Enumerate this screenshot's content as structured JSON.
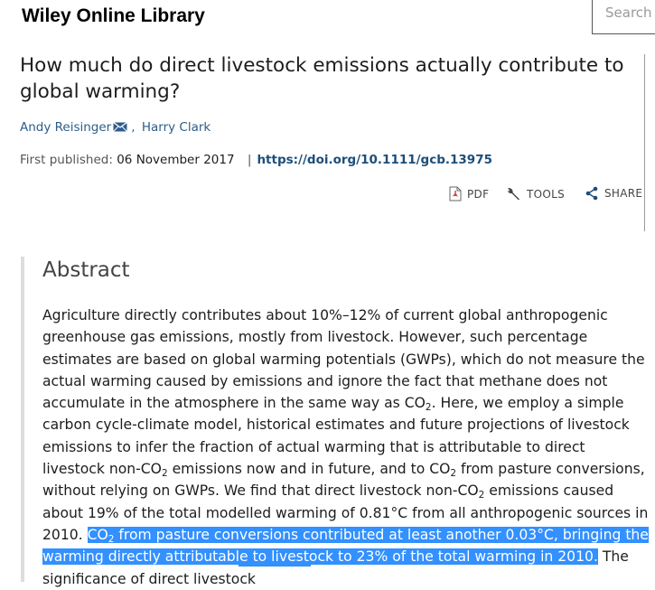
{
  "header": {
    "brand": "Wiley Online Library",
    "search_placeholder": "Search"
  },
  "article": {
    "title": "How much do direct livestock emissions actually contribute to global warming?",
    "authors": [
      "Andy Reisinger",
      "Harry Clark"
    ],
    "author_separator": ",",
    "first_published_label": "First published:",
    "first_published_date": "06 November 2017",
    "separator": "|",
    "doi": "https://doi.org/10.1111/gcb.13975"
  },
  "toolbar": {
    "pdf_label": "PDF",
    "tools_label": "TOOLS",
    "share_label": "SHARE",
    "icons": [
      "pdf-icon",
      "wrench-icon",
      "share-icon"
    ]
  },
  "abstract": {
    "heading": "Abstract",
    "p1": "Agriculture directly contributes about 10%–12% of current global anthropogenic greenhouse gas emissions, mostly from livestock. However, such percentage estimates are based on global warming potentials (GWPs), which do not measure the actual warming caused by emissions and ignore the fact that methane does not accumulate in the atmosphere in the same way as CO",
    "sub1": "2",
    "p2": ". Here, we employ a simple carbon cycle-climate model, historical estimates and future projections of livestock emissions to infer the fraction of actual warming that is attributable to direct livestock non-CO",
    "sub2": "2",
    "p3": " emissions now and in future, and to CO",
    "sub3": "2",
    "p4": " from pasture conversions, without relying on GWPs. We find that direct livestock non-CO",
    "sub4": "2",
    "p5": " emissions caused about 19% of the total modelled warming of 0.81°C from all anthropogenic sources in 2010. ",
    "hl1": "CO",
    "hl_sub": "2",
    "hl2": " from pasture conversions contributed at least another 0.03°C, bringing the warming directly attributable to livestock to 23% of the total warming in 2010.",
    "p6": " The significance of direct livestock"
  },
  "colors": {
    "link": "#2c5d8a",
    "doi": "#1d4e7a",
    "selection": "#3390ff",
    "abstract_border": "#dddddd"
  }
}
